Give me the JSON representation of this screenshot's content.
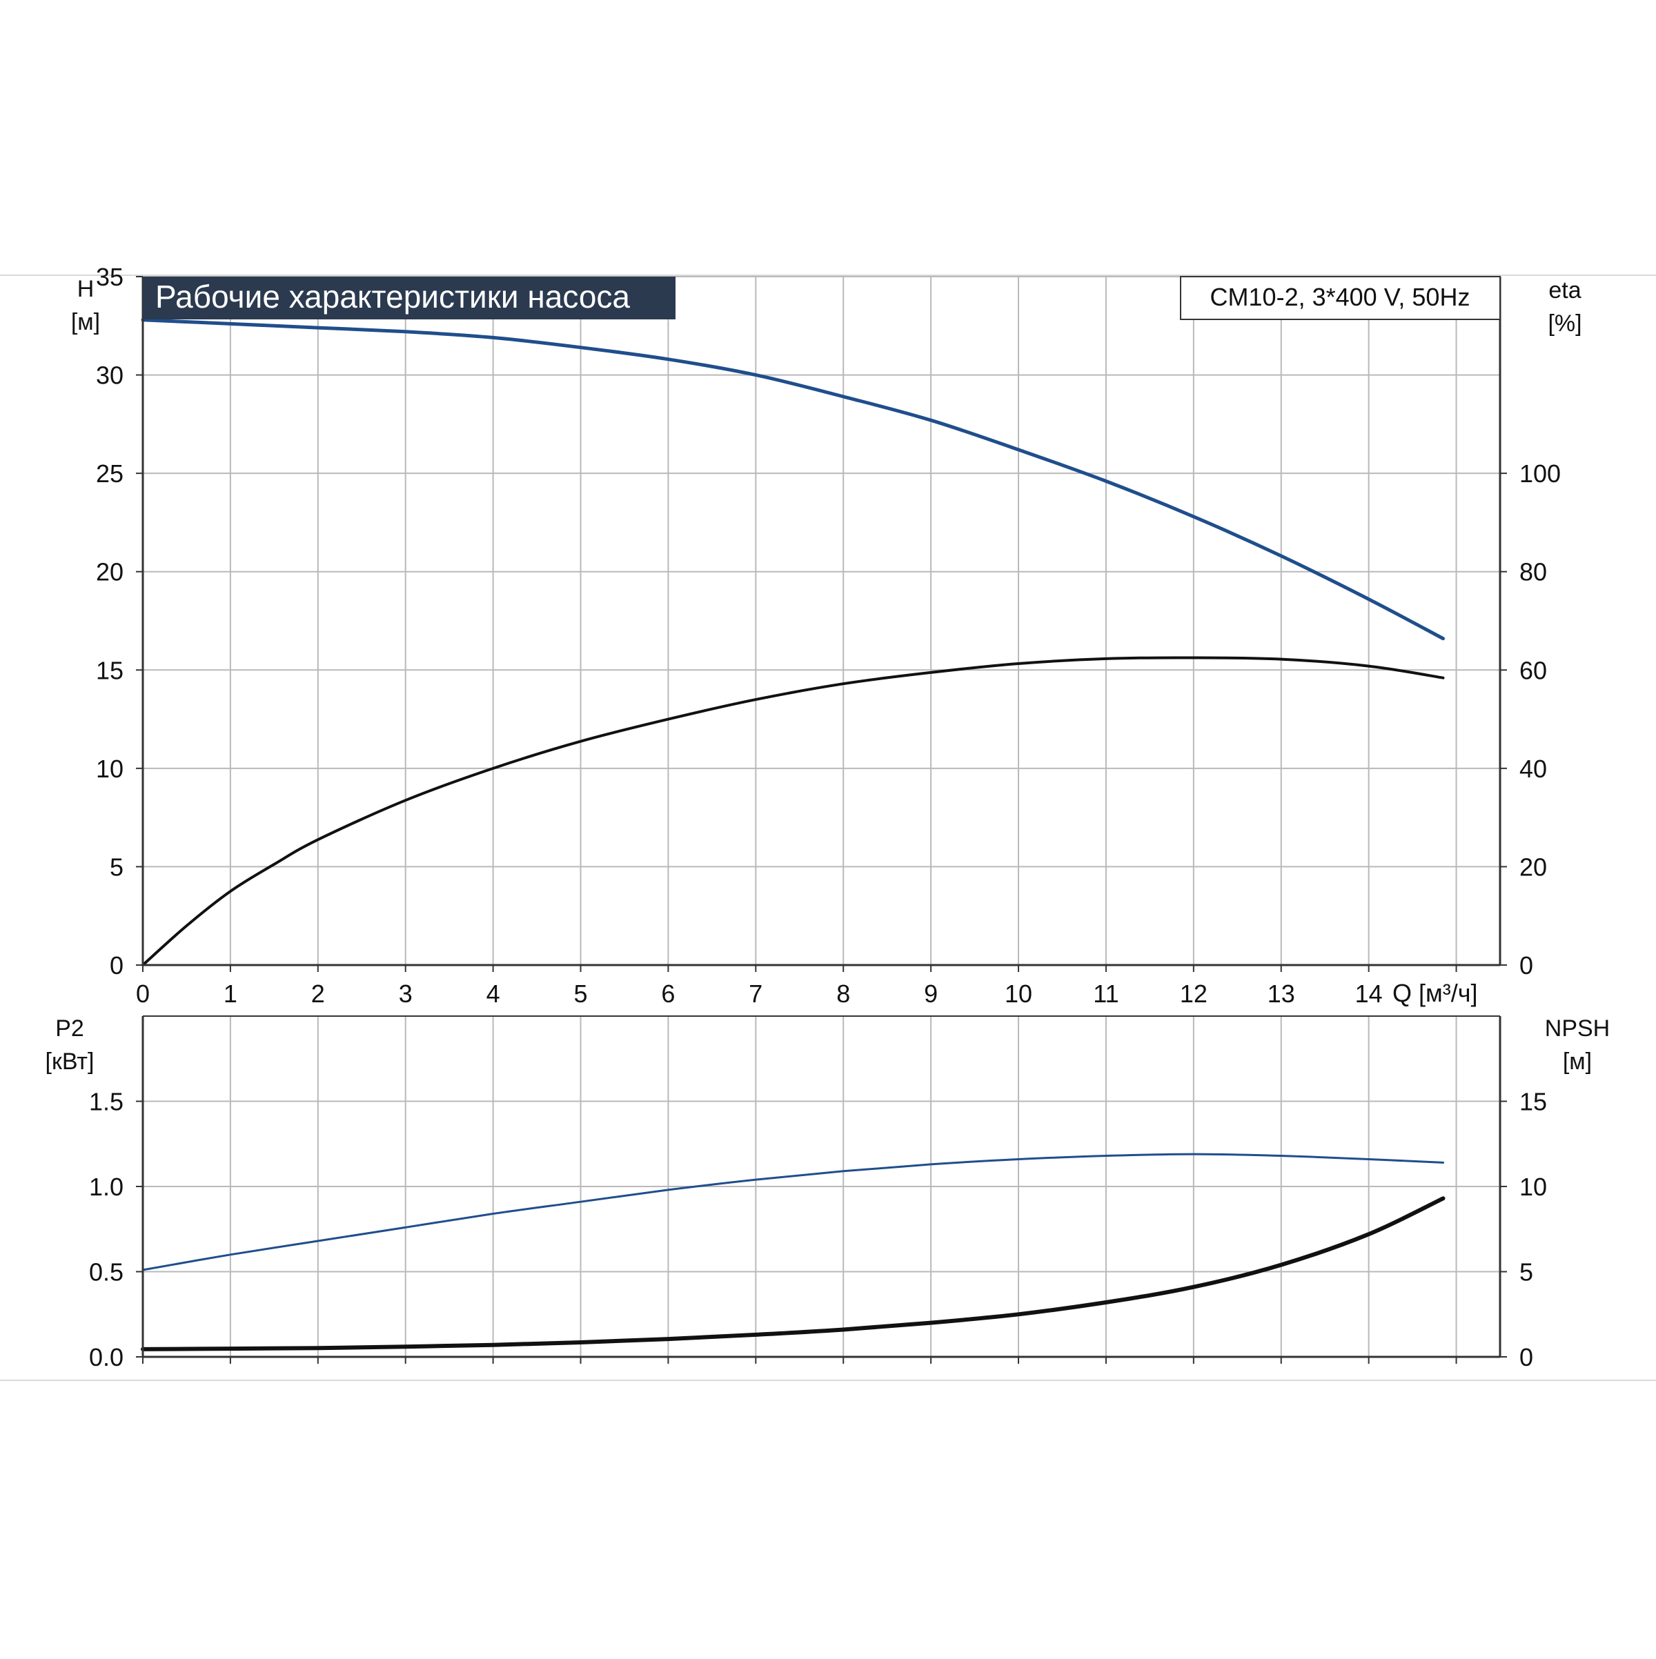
{
  "title_banner": "Рабочие характеристики насоса",
  "model_label": "CM10-2, 3*400 V, 50Hz",
  "colors": {
    "blue": "#1f4e8c",
    "black": "#111111",
    "grid": "#b9b9b9",
    "banner": "#2b3a4f",
    "banner_text": "#ffffff"
  },
  "chart_data": [
    {
      "type": "line",
      "panel": "top",
      "left_axis": {
        "label": "H",
        "unit": "[м]",
        "range": [
          0,
          35
        ],
        "ticks": [
          0,
          5,
          10,
          15,
          20,
          25,
          30,
          35
        ]
      },
      "right_axis": {
        "label": "eta",
        "unit": "[%]",
        "range": [
          0,
          140
        ],
        "ticks": [
          0,
          20,
          40,
          60,
          80,
          100
        ]
      },
      "x_axis": {
        "label": "Q [м³/ч]",
        "range": [
          0,
          15.5
        ],
        "ticks": [
          0,
          1,
          2,
          3,
          4,
          5,
          6,
          7,
          8,
          9,
          10,
          11,
          12,
          13,
          14
        ]
      },
      "grid": true,
      "series": [
        {
          "axis": "left",
          "color": "blue",
          "width": 5,
          "x": [
            0,
            1,
            2,
            3,
            4,
            5,
            6,
            7,
            8,
            9,
            10,
            11,
            12,
            13,
            14,
            14.85
          ],
          "y": [
            32.8,
            32.6,
            32.4,
            32.2,
            31.9,
            31.4,
            30.8,
            30.0,
            28.9,
            27.7,
            26.2,
            24.6,
            22.8,
            20.8,
            18.6,
            16.6
          ]
        },
        {
          "axis": "right",
          "color": "black",
          "width": 4,
          "x": [
            0,
            0.5,
            1,
            1.5,
            2,
            3,
            4,
            5,
            6,
            7,
            8,
            9,
            10,
            11,
            12,
            13,
            14,
            14.85
          ],
          "y": [
            0,
            8,
            15,
            20.5,
            25.5,
            33.5,
            40,
            45.5,
            50,
            54,
            57.2,
            59.5,
            61.3,
            62.3,
            62.5,
            62.2,
            60.8,
            58.4
          ]
        }
      ]
    },
    {
      "type": "line",
      "panel": "bottom",
      "left_axis": {
        "label": "P2",
        "unit": "[кВт]",
        "range": [
          0,
          2.0
        ],
        "ticks": [
          "0.0",
          "0.5",
          "1.0",
          "1.5"
        ]
      },
      "right_axis": {
        "label": "NPSH",
        "unit": "[м]",
        "range": [
          0,
          20
        ],
        "ticks": [
          0,
          5,
          10,
          15
        ]
      },
      "x_axis": {
        "range": [
          0,
          15.5
        ],
        "ticks": [
          0,
          1,
          2,
          3,
          4,
          5,
          6,
          7,
          8,
          9,
          10,
          11,
          12,
          13,
          14
        ]
      },
      "grid": true,
      "series": [
        {
          "axis": "left",
          "color": "blue",
          "width": 3,
          "x": [
            0,
            1,
            2,
            3,
            4,
            5,
            6,
            7,
            8,
            9,
            10,
            11,
            12,
            13,
            14,
            14.85
          ],
          "y": [
            0.51,
            0.6,
            0.68,
            0.76,
            0.84,
            0.91,
            0.98,
            1.04,
            1.09,
            1.13,
            1.16,
            1.18,
            1.19,
            1.18,
            1.16,
            1.14
          ]
        },
        {
          "axis": "right",
          "color": "black",
          "width": 6,
          "x": [
            0,
            1,
            2,
            3,
            4,
            5,
            6,
            7,
            8,
            9,
            10,
            11,
            12,
            13,
            14,
            14.85
          ],
          "y": [
            0.45,
            0.48,
            0.52,
            0.6,
            0.7,
            0.85,
            1.05,
            1.3,
            1.6,
            2.0,
            2.5,
            3.2,
            4.1,
            5.4,
            7.2,
            9.3
          ]
        }
      ]
    }
  ]
}
